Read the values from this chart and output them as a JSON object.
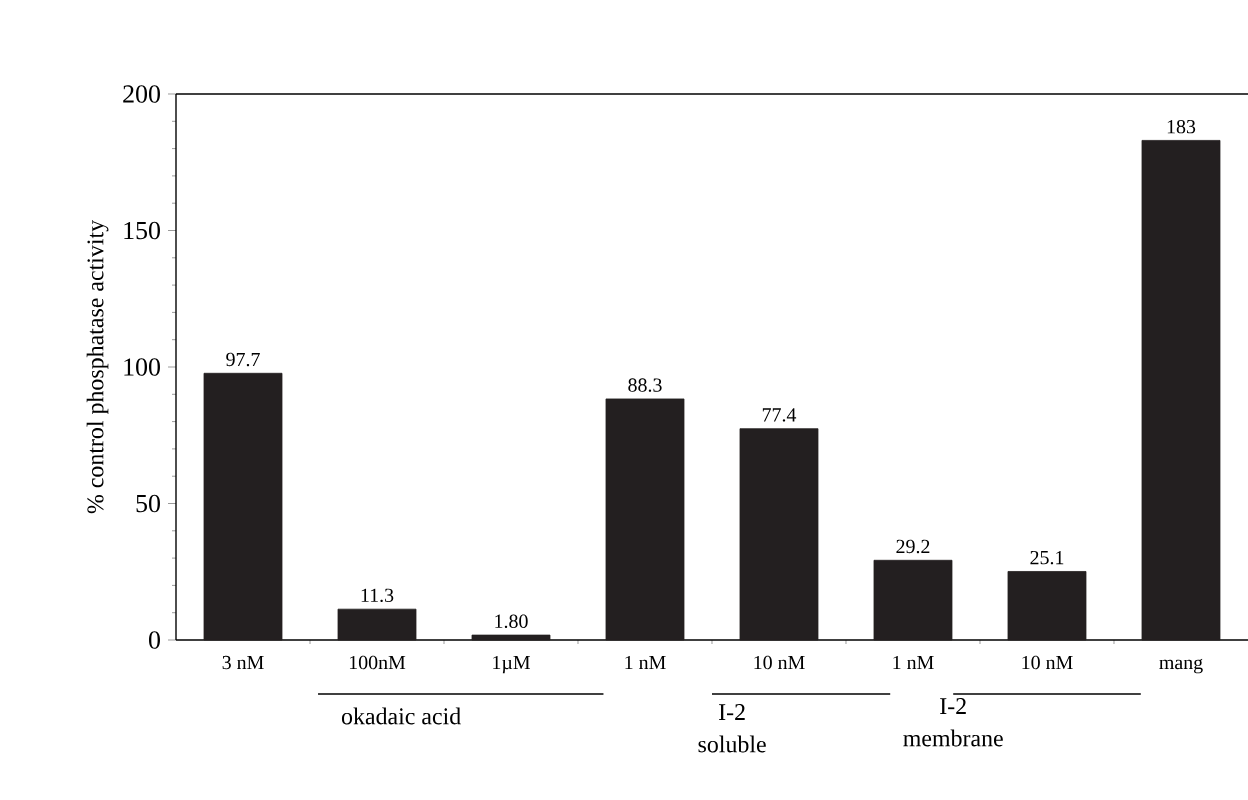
{
  "chart_data": {
    "type": "bar",
    "ylabel": "% control phosphatase activity",
    "categories": [
      "3 nM",
      "100nM",
      "1µM",
      "1 nM",
      "10 nM",
      "1 nM",
      "10 nM",
      "mang"
    ],
    "values": [
      97.7,
      11.3,
      1.8,
      88.3,
      77.4,
      29.2,
      25.1,
      183
    ],
    "value_labels": [
      "97.7",
      "11.3",
      "1.80",
      "88.3",
      "77.4",
      "29.2",
      "25.1",
      "183"
    ],
    "color": "#231f20",
    "ylim": [
      0,
      200
    ],
    "yticks": [
      0,
      50,
      100,
      150,
      200
    ],
    "grid": false,
    "annotations": [
      "okadaic acid",
      "I-2",
      "soluble",
      "I-2",
      "membrane"
    ]
  }
}
